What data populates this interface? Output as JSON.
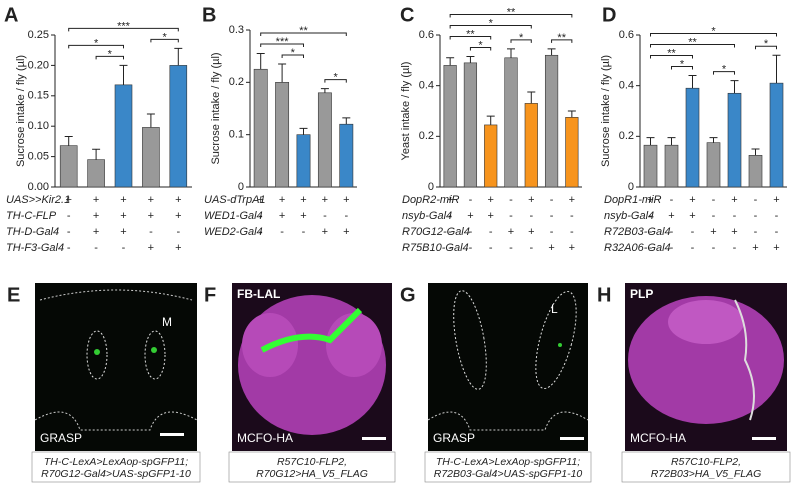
{
  "chart_data": [
    {
      "type": "bar",
      "panel": "A",
      "ylabel": "Sucrose intake / fly (µl)",
      "ylim": [
        0,
        0.25
      ],
      "yticks": [
        {
          "value": 0,
          "label": "0.00"
        },
        0.05,
        {
          "value": 0.1,
          "label": "0.10"
        },
        0.15,
        {
          "value": 0.2,
          "label": "0.20"
        },
        0.25
      ],
      "values": [
        0.068,
        0.045,
        0.168,
        0.098,
        0.2
      ],
      "errors": [
        0.015,
        0.017,
        0.032,
        0.022,
        0.028
      ],
      "colors": [
        "#999999",
        "#999999",
        "#3a87c8",
        "#999999",
        "#3a87c8"
      ],
      "rows": [
        {
          "label": "UAS>>Kir2.1",
          "values": [
            "+",
            "+",
            "+",
            "+",
            "+"
          ]
        },
        {
          "label": "TH-C-FLP",
          "values": [
            "-",
            "+",
            "+",
            "+",
            "+"
          ]
        },
        {
          "label": "TH-D-Gal4",
          "values": [
            "-",
            "+",
            "+",
            "-",
            "-"
          ]
        },
        {
          "label": "TH-F3-Gal4",
          "values": [
            "-",
            "-",
            "-",
            "+",
            "+"
          ]
        }
      ],
      "significance": [
        {
          "from": 1,
          "to": 2,
          "label": "*"
        },
        {
          "from": 3,
          "to": 4,
          "label": "*"
        },
        {
          "from": 0,
          "to": 2,
          "label": "*"
        },
        {
          "from": 0,
          "to": 4,
          "label": "***"
        }
      ]
    },
    {
      "type": "bar",
      "panel": "B",
      "ylabel": "Sucrose intake / fly (µl)",
      "ylim": [
        0,
        0.3
      ],
      "yticks": [
        0,
        0.1,
        0.2,
        0.3
      ],
      "values": [
        0.225,
        0.2,
        0.1,
        0.18,
        0.12
      ],
      "errors": [
        0.03,
        0.035,
        0.012,
        0.008,
        0.012
      ],
      "colors": [
        "#999999",
        "#999999",
        "#3a87c8",
        "#999999",
        "#3a87c8"
      ],
      "rows": [
        {
          "label": "UAS-dTrpA1",
          "values": [
            "+",
            "+",
            "+",
            "+",
            "+"
          ]
        },
        {
          "label": "WED1-Gal4",
          "values": [
            "-",
            "+",
            "+",
            "-",
            "-"
          ]
        },
        {
          "label": "WED2-Gal4",
          "values": [
            "-",
            "-",
            "-",
            "+",
            "+"
          ]
        }
      ],
      "significance": [
        {
          "from": 1,
          "to": 2,
          "label": "*"
        },
        {
          "from": 3,
          "to": 4,
          "label": "*"
        },
        {
          "from": 0,
          "to": 2,
          "label": "***"
        },
        {
          "from": 0,
          "to": 4,
          "label": "**"
        }
      ]
    },
    {
      "type": "bar",
      "panel": "C",
      "ylabel": "Yeast intake / fly (µl)",
      "ylim": [
        0,
        0.6
      ],
      "yticks": [
        0,
        0.2,
        0.4,
        0.6
      ],
      "values": [
        0.48,
        0.49,
        0.245,
        0.51,
        0.33,
        0.52,
        0.275
      ],
      "errors": [
        0.03,
        0.025,
        0.035,
        0.035,
        0.045,
        0.025,
        0.025
      ],
      "colors": [
        "#999999",
        "#999999",
        "#f7941d",
        "#999999",
        "#f7941d",
        "#999999",
        "#f7941d"
      ],
      "rows": [
        {
          "label": "DopR2-miR",
          "values": [
            "+",
            "-",
            "+",
            "-",
            "+",
            "-",
            "+"
          ]
        },
        {
          "label": "nsyb-Gal4",
          "values": [
            "-",
            "+",
            "+",
            "-",
            "-",
            "-",
            "-"
          ]
        },
        {
          "label": "R70G12-Gal4",
          "values": [
            "-",
            "-",
            "-",
            "+",
            "+",
            "-",
            "-"
          ]
        },
        {
          "label": "R75B10-Gal4",
          "values": [
            "-",
            "-",
            "-",
            "-",
            "-",
            "+",
            "+"
          ]
        }
      ],
      "significance": [
        {
          "from": 1,
          "to": 2,
          "label": "*"
        },
        {
          "from": 3,
          "to": 4,
          "label": "*"
        },
        {
          "from": 5,
          "to": 6,
          "label": "**"
        },
        {
          "from": 0,
          "to": 2,
          "label": "**"
        },
        {
          "from": 0,
          "to": 4,
          "label": "*"
        },
        {
          "from": 0,
          "to": 6,
          "label": "**"
        }
      ]
    },
    {
      "type": "bar",
      "panel": "D",
      "ylabel": "Sucrose intake / fly (µl)",
      "ylim": [
        0,
        0.6
      ],
      "yticks": [
        0,
        0.2,
        0.4,
        0.6
      ],
      "values": [
        0.165,
        0.165,
        0.39,
        0.175,
        0.37,
        0.125,
        0.41
      ],
      "errors": [
        0.03,
        0.03,
        0.05,
        0.02,
        0.05,
        0.025,
        0.11
      ],
      "colors": [
        "#999999",
        "#999999",
        "#3a87c8",
        "#999999",
        "#3a87c8",
        "#999999",
        "#3a87c8"
      ],
      "rows": [
        {
          "label": "DopR1-miR",
          "values": [
            "+",
            "-",
            "+",
            "-",
            "+",
            "-",
            "+"
          ]
        },
        {
          "label": "nsyb-Gal4",
          "values": [
            "-",
            "+",
            "+",
            "-",
            "-",
            "-",
            "-"
          ]
        },
        {
          "label": "R72B03-Gal4",
          "values": [
            "-",
            "-",
            "-",
            "+",
            "+",
            "-",
            "-"
          ]
        },
        {
          "label": "R32A06-Gal4",
          "values": [
            "-",
            "-",
            "-",
            "-",
            "-",
            "+",
            "+"
          ]
        }
      ],
      "significance": [
        {
          "from": 1,
          "to": 2,
          "label": "*"
        },
        {
          "from": 3,
          "to": 4,
          "label": "*"
        },
        {
          "from": 5,
          "to": 6,
          "label": "*"
        },
        {
          "from": 0,
          "to": 2,
          "label": "**"
        },
        {
          "from": 0,
          "to": 4,
          "label": "**"
        },
        {
          "from": 0,
          "to": 6,
          "label": "*"
        }
      ]
    }
  ],
  "images": [
    {
      "panel": "E",
      "region": "M",
      "bottom_label": "GRASP",
      "caption": [
        "TH-C-LexA>LexAop-spGFP11;",
        "R70G12-Gal4>UAS-spGFP1-10"
      ]
    },
    {
      "panel": "F",
      "top_label": "FB-LAL",
      "bottom_label": "MCFO-HA",
      "caption": [
        "R57C10-FLP2,",
        "R70G12>HA_V5_FLAG"
      ]
    },
    {
      "panel": "G",
      "region": "L",
      "bottom_label": "GRASP",
      "caption": [
        "TH-C-LexA>LexAop-spGFP11;",
        "R72B03-Gal4>UAS-spGFP1-10"
      ]
    },
    {
      "panel": "H",
      "top_label": "PLP",
      "bottom_label": "MCFO-HA",
      "caption": [
        "R57C10-FLP2,",
        "R72B03>HA_V5_FLAG"
      ]
    }
  ]
}
